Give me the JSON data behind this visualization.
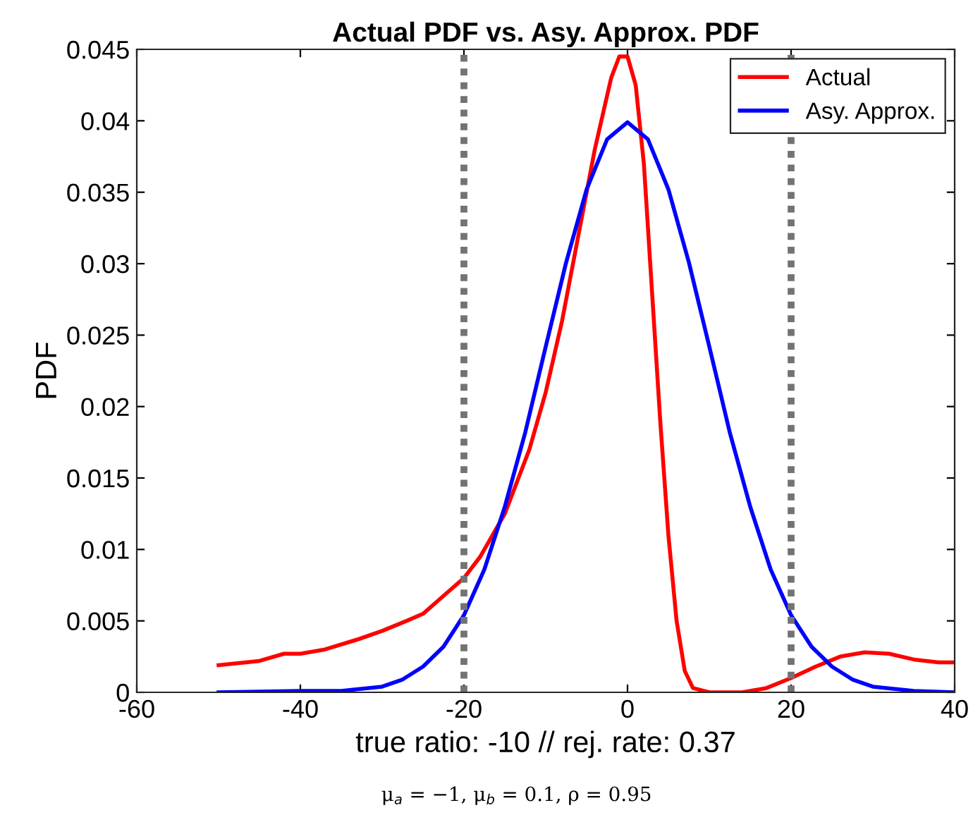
{
  "chart_data": {
    "type": "line",
    "title": "Actual PDF vs. Asy. Approx. PDF",
    "xlabel": "true ratio: -10 // rej. rate: 0.37",
    "ylabel": "PDF",
    "annotations": [
      "μ$_{a}$ = −1, μ$_{b}$ = 0.1, ρ = 0.95"
    ],
    "series": [
      {
        "name": "Actual",
        "color": "#ff0000",
        "x": [
          -50,
          -45,
          -42,
          -40,
          -37,
          -33,
          -30,
          -27,
          -25,
          -23,
          -20,
          -18,
          -15,
          -12,
          -10,
          -8,
          -6,
          -4,
          -2,
          -1,
          0,
          1,
          2,
          3,
          4,
          5,
          6,
          7,
          8,
          10,
          14,
          17,
          20,
          23,
          26,
          29,
          32,
          35,
          38,
          40
        ],
        "values": [
          0.0019,
          0.0022,
          0.0027,
          0.0027,
          0.003,
          0.0037,
          0.0043,
          0.005,
          0.0055,
          0.0065,
          0.008,
          0.0095,
          0.0125,
          0.017,
          0.021,
          0.026,
          0.032,
          0.038,
          0.043,
          0.0445,
          0.0445,
          0.0425,
          0.037,
          0.028,
          0.019,
          0.011,
          0.005,
          0.0015,
          0.0003,
          0.0,
          0.0,
          0.0003,
          0.001,
          0.0018,
          0.0025,
          0.0028,
          0.0027,
          0.0023,
          0.0021,
          0.0021
        ]
      },
      {
        "name": "Asy. Approx.",
        "color": "#0000ff",
        "x": [
          -50,
          -40,
          -35,
          -30,
          -27.5,
          -25,
          -22.5,
          -20,
          -17.5,
          -15,
          -12.5,
          -10,
          -7.5,
          -5,
          -2.5,
          0,
          2.5,
          5,
          7.5,
          10,
          12.5,
          15,
          17.5,
          20,
          22.5,
          25,
          27.5,
          30,
          35,
          40
        ],
        "values": [
          0.0,
          0.0001,
          0.0001,
          0.0004,
          0.0009,
          0.0018,
          0.0032,
          0.0054,
          0.0086,
          0.013,
          0.0182,
          0.0242,
          0.0301,
          0.0352,
          0.0387,
          0.0399,
          0.0387,
          0.0352,
          0.0301,
          0.0242,
          0.0182,
          0.013,
          0.0086,
          0.0054,
          0.0032,
          0.0018,
          0.0009,
          0.0004,
          0.0001,
          0.0
        ]
      }
    ],
    "ref_lines": [
      {
        "axis": "x",
        "value": -20,
        "color": "#737373",
        "line_style": "dotted"
      },
      {
        "axis": "x",
        "value": 20,
        "color": "#737373",
        "line_style": "dotted"
      }
    ],
    "xlim": [
      -60,
      40
    ],
    "xticks": [
      -60,
      -40,
      -20,
      0,
      20,
      40
    ],
    "ylim": [
      0,
      0.045
    ],
    "yticks": [
      0,
      0.005,
      0.01,
      0.015,
      0.02,
      0.025,
      0.03,
      0.035,
      0.04,
      0.045
    ],
    "grid": false,
    "legend": "top right",
    "line_style": "solid",
    "marker": "none"
  }
}
